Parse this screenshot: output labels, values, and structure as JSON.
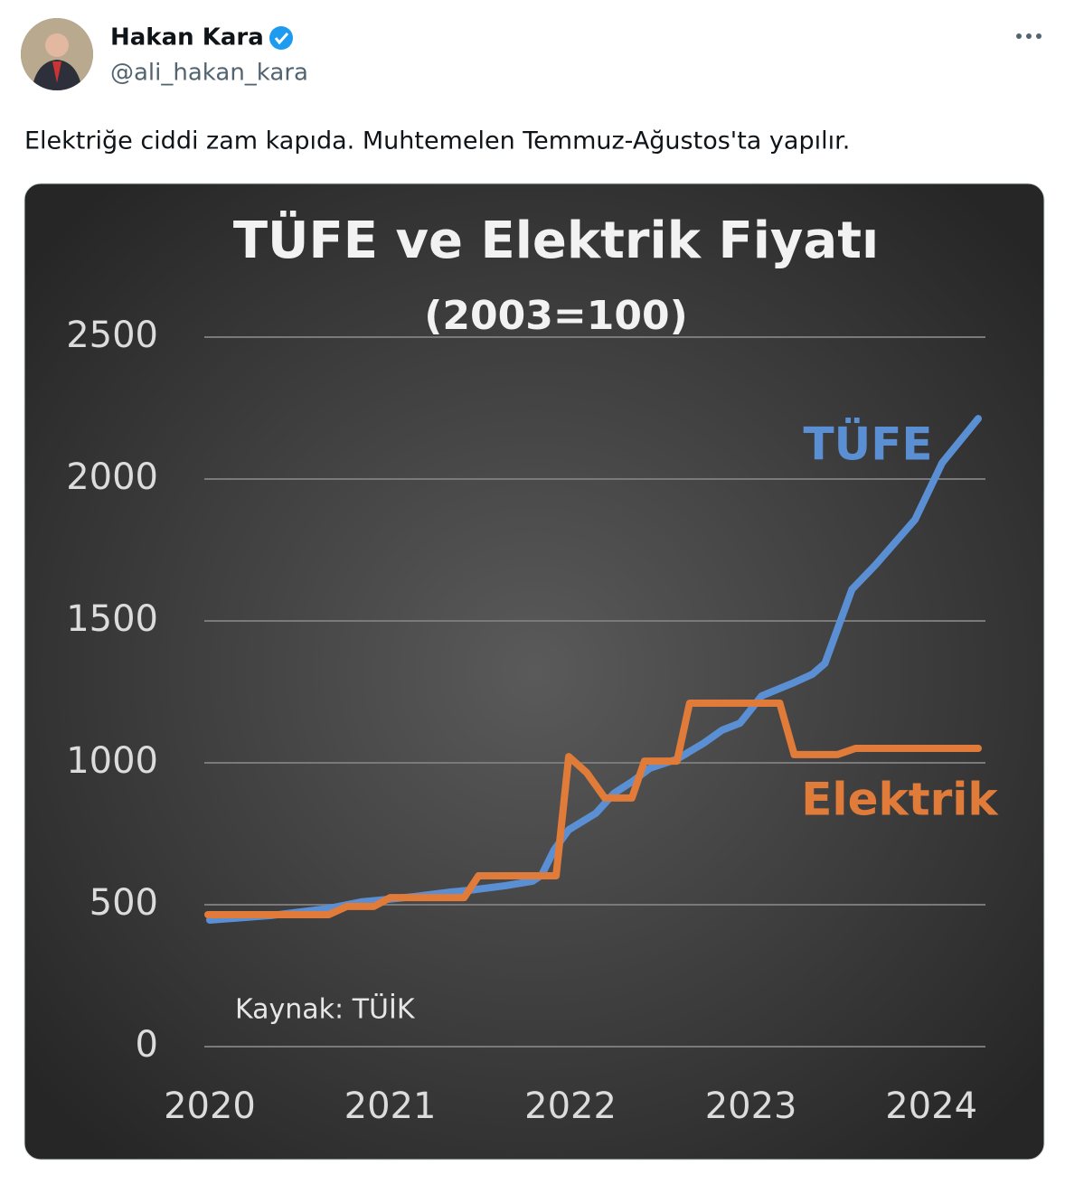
{
  "tweet": {
    "author_name": "Hakan Kara",
    "handle": "@ali_hakan_kara",
    "text": "Elektriğe ciddi zam kapıda. Muhtemelen Temmuz-Ağustos'ta yapılır."
  },
  "chart_data": {
    "type": "line",
    "title": "TÜFE ve Elektrik Fiyatı",
    "subtitle": "(2003=100)",
    "source": "Kaynak: TÜİK",
    "xlim": [
      2019.97,
      2024.3
    ],
    "xticks": [
      2020,
      2021,
      2022,
      2023,
      2024
    ],
    "ylim": [
      0,
      2500
    ],
    "yticks": [
      0,
      500,
      1000,
      1500,
      2000,
      2500
    ],
    "grid": true,
    "series": [
      {
        "name": "TÜFE",
        "color": "#5b8fd4",
        "x": [
          2020.0,
          2020.34,
          2020.66,
          2020.84,
          2020.94,
          2021.14,
          2021.34,
          2021.44,
          2021.64,
          2021.79,
          2021.84,
          2021.91,
          2021.99,
          2022.14,
          2022.24,
          2022.34,
          2022.44,
          2022.59,
          2022.74,
          2022.84,
          2022.94,
          2023.06,
          2023.24,
          2023.34,
          2023.41,
          2023.56,
          2023.69,
          2023.91,
          2024.06,
          2024.26
        ],
        "values": [
          446,
          462,
          487,
          510,
          516,
          529,
          545,
          551,
          567,
          583,
          605,
          694,
          764,
          822,
          892,
          933,
          981,
          1013,
          1070,
          1115,
          1140,
          1236,
          1283,
          1312,
          1350,
          1611,
          1697,
          1857,
          2057,
          2213
        ]
      },
      {
        "name": "Elektrik",
        "color": "#e07b39",
        "x": [
          2019.99,
          2020.66,
          2020.76,
          2020.91,
          2021.0,
          2021.41,
          2021.49,
          2021.92,
          2021.99,
          2022.09,
          2022.19,
          2022.34,
          2022.41,
          2022.59,
          2022.66,
          2023.16,
          2023.24,
          2023.48,
          2023.58,
          2024.26
        ],
        "values": [
          465,
          465,
          494,
          494,
          525,
          525,
          602,
          602,
          1022,
          965,
          876,
          876,
          1006,
          1006,
          1210,
          1210,
          1029,
          1029,
          1051,
          1051
        ]
      }
    ]
  }
}
